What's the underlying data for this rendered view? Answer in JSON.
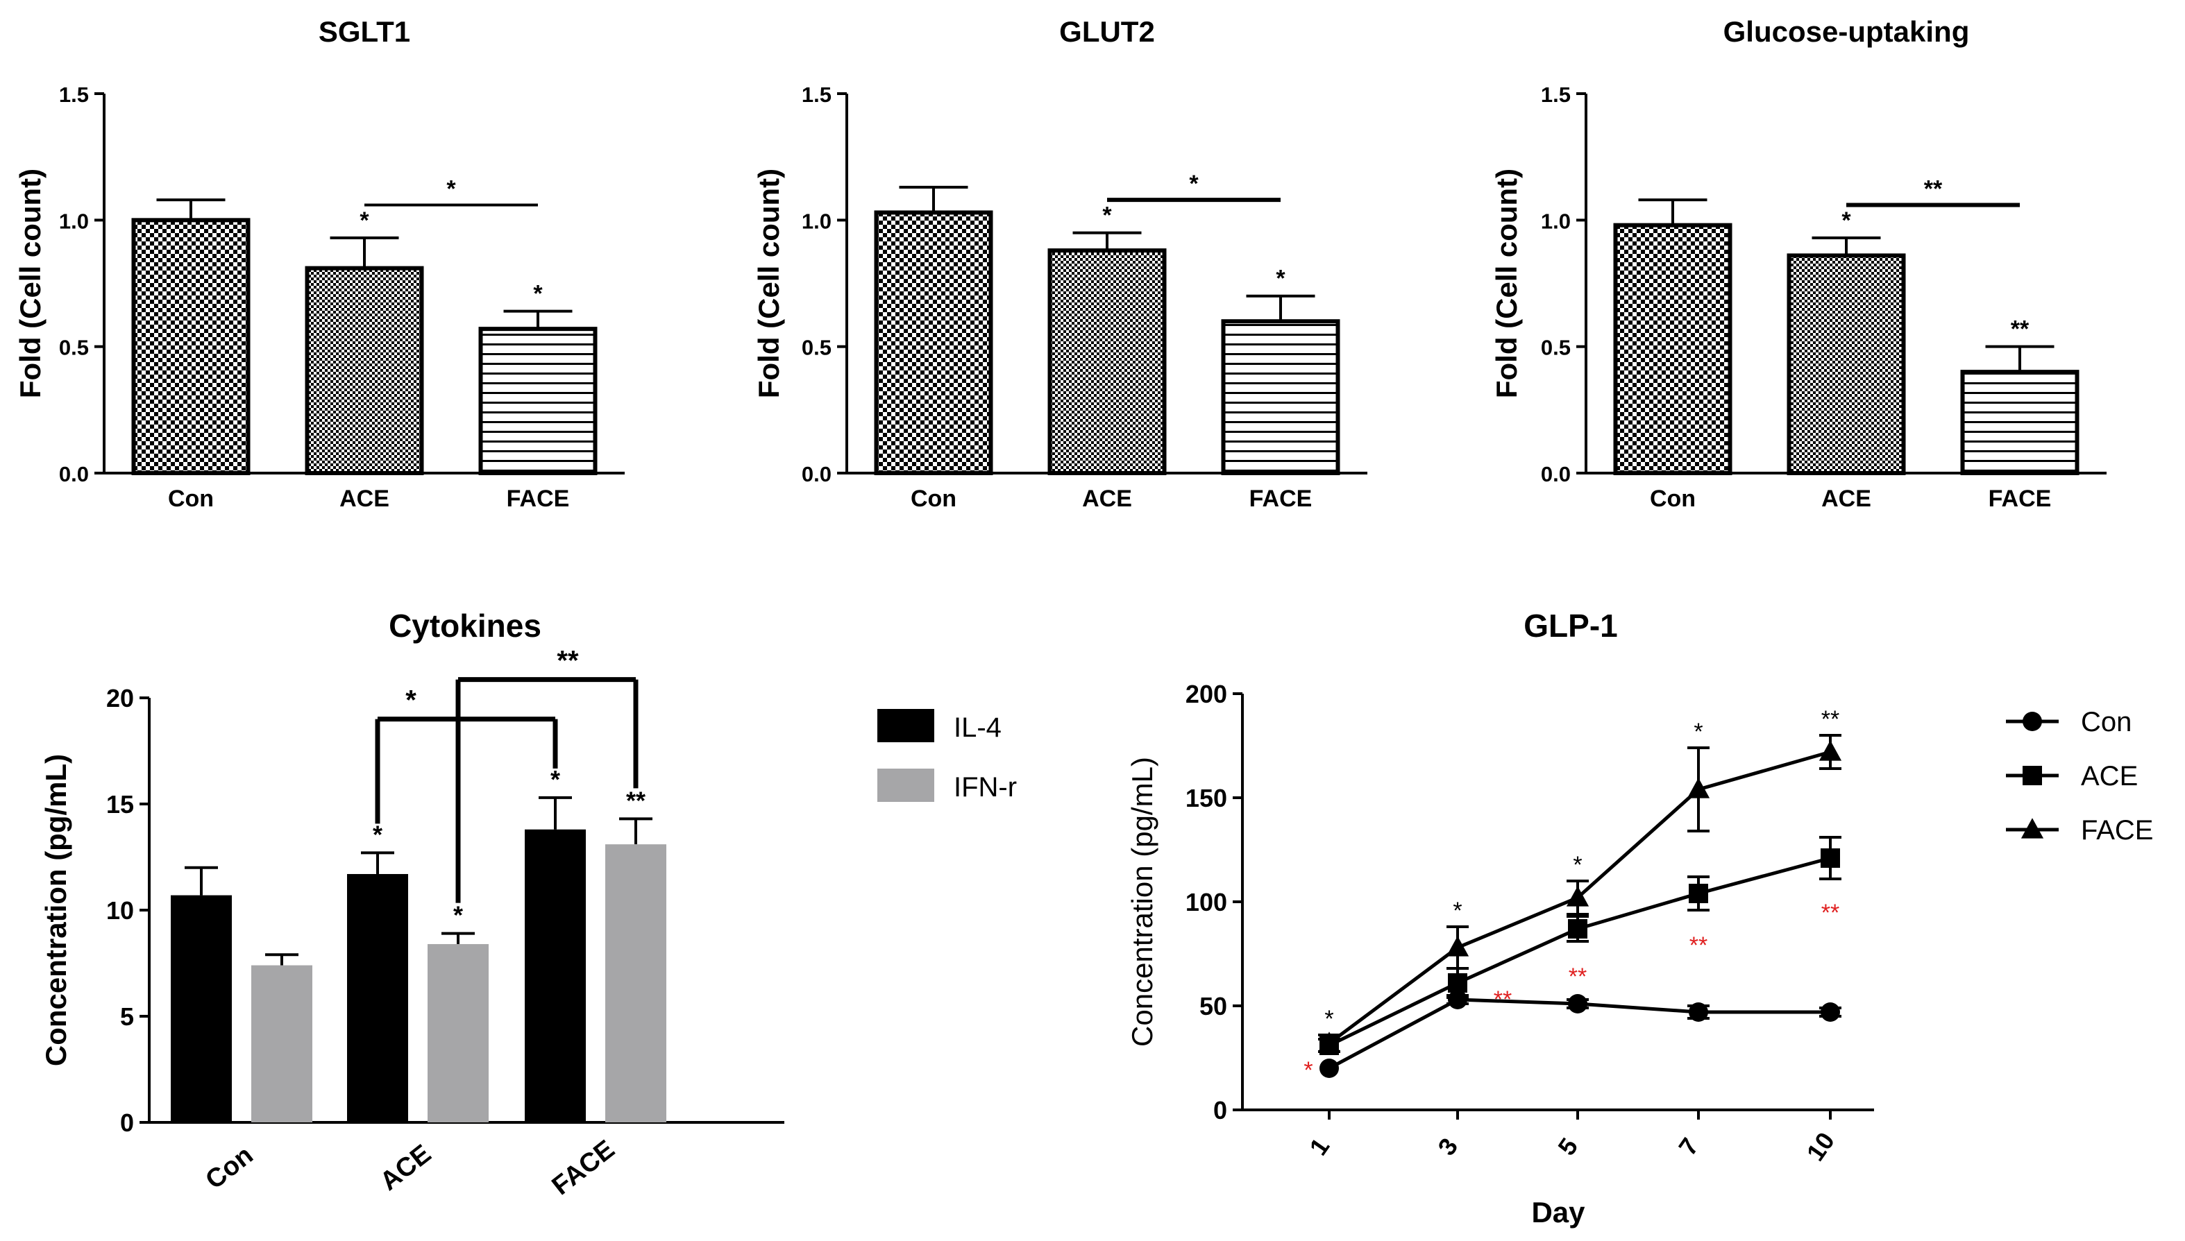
{
  "chart_data": [
    {
      "id": "sglt1",
      "type": "bar",
      "title": "SGLT1",
      "ylabel": "Fold (Cell count)",
      "xlabel": "",
      "ylim": [
        0,
        1.5
      ],
      "yticks": [
        "0.0",
        "0.5",
        "1.0",
        "1.5"
      ],
      "categories": [
        "Con",
        "ACE",
        "FACE"
      ],
      "values": [
        1.0,
        0.81,
        0.57
      ],
      "errors": [
        0.08,
        0.12,
        0.07
      ],
      "bar_stars": [
        "",
        "*",
        "*"
      ],
      "bracket_label": "*"
    },
    {
      "id": "glut2",
      "type": "bar",
      "title": "GLUT2",
      "ylabel": "Fold (Cell count)",
      "xlabel": "",
      "ylim": [
        0,
        1.5
      ],
      "yticks": [
        "0.0",
        "0.5",
        "1.0",
        "1.5"
      ],
      "categories": [
        "Con",
        "ACE",
        "FACE"
      ],
      "values": [
        1.03,
        0.88,
        0.6
      ],
      "errors": [
        0.1,
        0.07,
        0.1
      ],
      "bar_stars": [
        "",
        "*",
        "*"
      ],
      "bracket_label": "*"
    },
    {
      "id": "glucose",
      "type": "bar",
      "title": "Glucose-uptaking",
      "ylabel": "Fold (Cell count)",
      "xlabel": "",
      "ylim": [
        0,
        1.5
      ],
      "yticks": [
        "0.0",
        "0.5",
        "1.0",
        "1.5"
      ],
      "categories": [
        "Con",
        "ACE",
        "FACE"
      ],
      "values": [
        0.98,
        0.86,
        0.4
      ],
      "errors": [
        0.1,
        0.07,
        0.1
      ],
      "bar_stars": [
        "",
        "*",
        "**"
      ],
      "bracket_label": "**"
    },
    {
      "id": "cytokines",
      "type": "bar",
      "title": "Cytokines",
      "ylabel": "Concentration (pg/mL)",
      "xlabel": "",
      "ylim": [
        0,
        20
      ],
      "yticks": [
        "0",
        "5",
        "10",
        "15",
        "20"
      ],
      "categories": [
        "Con",
        "ACE",
        "FACE"
      ],
      "series": [
        {
          "name": "IL-4",
          "color": "#000000",
          "values": [
            10.7,
            11.7,
            13.8
          ],
          "errors": [
            1.3,
            1.0,
            1.5
          ],
          "stars": [
            "",
            "*",
            "*"
          ]
        },
        {
          "name": "IFN-r",
          "color": "#a6a6a8",
          "values": [
            7.4,
            8.4,
            13.1
          ],
          "errors": [
            0.5,
            0.5,
            1.2
          ],
          "stars": [
            "",
            "*",
            "**"
          ]
        }
      ],
      "brackets": [
        {
          "label": "*",
          "from": "ACE IL-4",
          "to": "FACE IL-4"
        },
        {
          "label": "**",
          "from": "ACE IFN-r",
          "to": "FACE IFN-r"
        }
      ]
    },
    {
      "id": "glp1",
      "type": "line",
      "title": "GLP-1",
      "ylabel": "Concentration (pg/mL)",
      "xlabel": "Day",
      "ylim": [
        0,
        200
      ],
      "yticks": [
        "0",
        "50",
        "100",
        "150",
        "200"
      ],
      "x": [
        "1",
        "3",
        "5",
        "7",
        "10"
      ],
      "series": [
        {
          "name": "Con",
          "marker": "circle",
          "values": [
            20,
            53,
            51,
            47,
            47
          ],
          "errors": [
            0,
            2,
            2,
            3,
            2
          ]
        },
        {
          "name": "ACE",
          "marker": "square",
          "values": [
            31,
            61,
            87,
            104,
            121
          ],
          "errors": [
            3,
            7,
            6,
            8,
            10
          ]
        },
        {
          "name": "FACE",
          "marker": "triangle",
          "values": [
            32,
            78,
            102,
            154,
            172
          ],
          "errors": [
            4,
            10,
            8,
            20,
            8
          ]
        }
      ],
      "black_stars": [
        "*",
        "*",
        "*",
        "*",
        "**"
      ],
      "red_stars": [
        "*",
        "**",
        "**",
        "**",
        "**"
      ],
      "red_star_color": "#e02020"
    }
  ]
}
